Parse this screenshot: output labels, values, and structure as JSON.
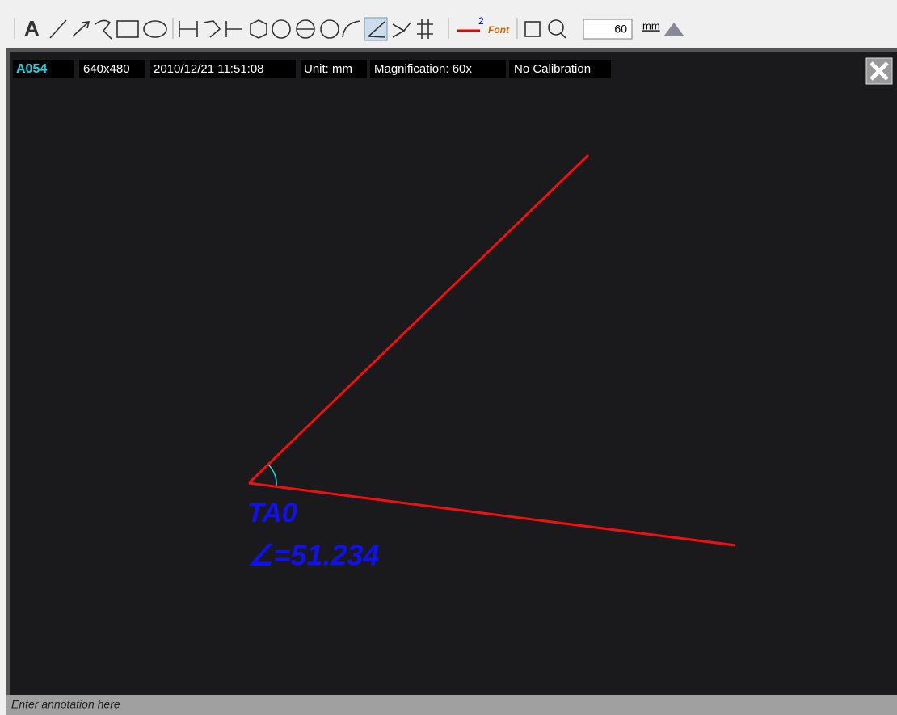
{
  "toolbar": {
    "text_tool": "A",
    "line_width": "2",
    "font_button": "Font",
    "magnification_input": "60",
    "unit_button": "mm"
  },
  "info_bar": {
    "id": "A054",
    "resolution": "640x480",
    "datetime": "2010/12/21 11:51:08",
    "unit": "Unit: mm",
    "magnification": "Magnification:  60x",
    "calibration": "No Calibration"
  },
  "measurement": {
    "label": "TA0",
    "value": "∠=51.234"
  },
  "status_bar": {
    "placeholder": "Enter annotation here"
  }
}
